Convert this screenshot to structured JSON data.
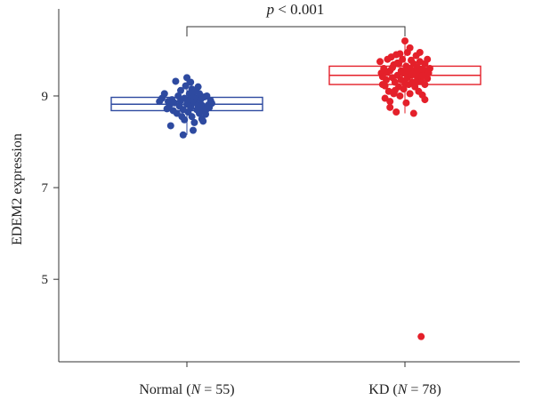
{
  "chart_data": {
    "type": "scatter",
    "ylabel": "EDEM2 expression",
    "ylim": [
      3.2,
      10.9
    ],
    "yticks": [
      5,
      7,
      9
    ],
    "categories": [
      {
        "prefix": "Normal (",
        "n_symbol": "N",
        "n_text": " = 55)"
      },
      {
        "prefix": "KD (",
        "n_symbol": "N",
        "n_text": " = 78)"
      }
    ],
    "annotation": {
      "p_symbol": "p",
      "p_text": " < 0.001"
    },
    "series": [
      {
        "color": "#2e4aa0",
        "box": {
          "q1": 8.68,
          "median": 8.82,
          "q3": 8.97,
          "whisker_low": 8.15,
          "whisker_high": 9.4
        },
        "points": [
          [
            -0.22,
            8.88
          ],
          [
            -0.18,
            9.05
          ],
          [
            -0.16,
            8.72
          ],
          [
            -0.14,
            8.8
          ],
          [
            -0.12,
            8.92
          ],
          [
            -0.1,
            8.85
          ],
          [
            -0.09,
            9.32
          ],
          [
            -0.08,
            8.62
          ],
          [
            -0.07,
            9.0
          ],
          [
            -0.06,
            8.78
          ],
          [
            -0.05,
            9.12
          ],
          [
            -0.05,
            8.9
          ],
          [
            -0.04,
            8.55
          ],
          [
            -0.03,
            8.7
          ],
          [
            -0.02,
            8.95
          ],
          [
            -0.02,
            8.48
          ],
          [
            -0.01,
            9.22
          ],
          [
            0.0,
            8.82
          ],
          [
            0.0,
            9.4
          ],
          [
            0.01,
            8.65
          ],
          [
            0.02,
            9.05
          ],
          [
            0.02,
            8.9
          ],
          [
            0.03,
            8.75
          ],
          [
            0.04,
            9.15
          ],
          [
            0.04,
            8.55
          ],
          [
            0.05,
            8.98
          ],
          [
            0.06,
            8.42
          ],
          [
            0.06,
            8.85
          ],
          [
            0.07,
            9.1
          ],
          [
            0.08,
            8.7
          ],
          [
            0.08,
            8.95
          ],
          [
            0.09,
            8.8
          ],
          [
            0.1,
            8.62
          ],
          [
            0.1,
            9.05
          ],
          [
            0.11,
            8.92
          ],
          [
            0.12,
            8.5
          ],
          [
            0.12,
            8.8
          ],
          [
            0.13,
            8.72
          ],
          [
            0.14,
            8.98
          ],
          [
            0.15,
            8.68
          ],
          [
            0.16,
            9.0
          ],
          [
            0.17,
            8.8
          ],
          [
            0.18,
            8.75
          ],
          [
            0.19,
            8.9
          ],
          [
            0.2,
            8.84
          ],
          [
            -0.2,
            8.95
          ],
          [
            -0.15,
            8.88
          ],
          [
            -0.11,
            8.68
          ],
          [
            0.05,
            8.25
          ],
          [
            0.13,
            8.45
          ],
          [
            -0.03,
            8.15
          ],
          [
            0.09,
            9.2
          ],
          [
            0.15,
            8.6
          ],
          [
            -0.13,
            8.35
          ],
          [
            0.03,
            9.3
          ]
        ]
      },
      {
        "color": "#e4202a",
        "box": {
          "q1": 9.25,
          "median": 9.45,
          "q3": 9.65,
          "whisker_low": 8.62,
          "whisker_high": 10.2
        },
        "points": [
          [
            -0.2,
            9.75
          ],
          [
            -0.19,
            9.5
          ],
          [
            -0.18,
            9.25
          ],
          [
            -0.17,
            9.6
          ],
          [
            -0.16,
            8.95
          ],
          [
            -0.15,
            9.35
          ],
          [
            -0.14,
            9.8
          ],
          [
            -0.13,
            9.1
          ],
          [
            -0.12,
            8.75
          ],
          [
            -0.12,
            9.55
          ],
          [
            -0.11,
            9.85
          ],
          [
            -0.1,
            9.4
          ],
          [
            -0.09,
            9.05
          ],
          [
            -0.09,
            9.68
          ],
          [
            -0.08,
            9.3
          ],
          [
            -0.07,
            9.9
          ],
          [
            -0.07,
            8.65
          ],
          [
            -0.06,
            9.45
          ],
          [
            -0.05,
            9.2
          ],
          [
            -0.05,
            9.7
          ],
          [
            -0.04,
            9.0
          ],
          [
            -0.03,
            9.55
          ],
          [
            -0.03,
            9.35
          ],
          [
            -0.02,
            9.8
          ],
          [
            -0.01,
            9.15
          ],
          [
            0.0,
            9.5
          ],
          [
            0.0,
            10.2
          ],
          [
            0.01,
            8.85
          ],
          [
            0.01,
            9.65
          ],
          [
            0.02,
            9.4
          ],
          [
            0.02,
            9.95
          ],
          [
            0.03,
            9.25
          ],
          [
            0.04,
            9.6
          ],
          [
            0.04,
            9.05
          ],
          [
            0.05,
            9.78
          ],
          [
            0.05,
            9.45
          ],
          [
            0.06,
            9.3
          ],
          [
            0.07,
            9.7
          ],
          [
            0.07,
            8.62
          ],
          [
            0.08,
            9.55
          ],
          [
            0.08,
            9.2
          ],
          [
            0.09,
            9.88
          ],
          [
            0.1,
            9.4
          ],
          [
            0.1,
            9.62
          ],
          [
            0.11,
            9.1
          ],
          [
            0.12,
            9.5
          ],
          [
            0.12,
            9.75
          ],
          [
            0.13,
            9.32
          ],
          [
            0.14,
            9.58
          ],
          [
            0.14,
            9.02
          ],
          [
            0.15,
            9.45
          ],
          [
            0.16,
            9.7
          ],
          [
            0.16,
            9.25
          ],
          [
            0.17,
            9.55
          ],
          [
            0.18,
            9.8
          ],
          [
            0.18,
            9.38
          ],
          [
            0.19,
            9.5
          ],
          [
            0.2,
            9.6
          ],
          [
            -0.18,
            9.42
          ],
          [
            -0.14,
            9.52
          ],
          [
            -0.1,
            9.62
          ],
          [
            -0.06,
            9.72
          ],
          [
            -0.02,
            9.5
          ],
          [
            0.02,
            9.56
          ],
          [
            0.06,
            9.48
          ],
          [
            0.1,
            9.52
          ],
          [
            0.14,
            9.44
          ],
          [
            0.18,
            9.48
          ],
          [
            -0.16,
            9.22
          ],
          [
            -0.08,
            9.12
          ],
          [
            0.0,
            9.28
          ],
          [
            0.09,
            9.3
          ],
          [
            0.16,
            8.92
          ],
          [
            -0.04,
            9.92
          ],
          [
            0.04,
            10.05
          ],
          [
            0.12,
            9.95
          ],
          [
            -0.12,
            8.88
          ],
          [
            0.13,
            3.75
          ]
        ]
      }
    ]
  }
}
